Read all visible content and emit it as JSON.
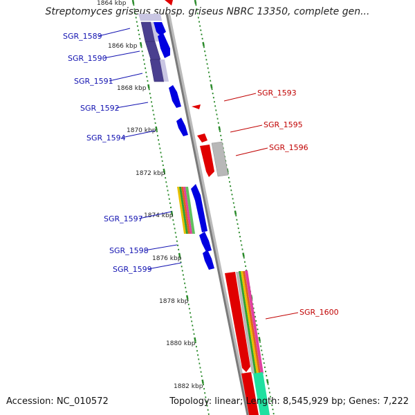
{
  "title": "Streptomyces griseus subsp. griseus NBRC 13350, complete gen...",
  "accession": "Accession: NC_010572",
  "summary": "Topology: linear; Length: 8,545,929 bp; Genes: 7,222",
  "colors": {
    "forward_gene": "#0000e0",
    "reverse_gene": "#e00000",
    "pseudo_gene": "#b0b0b0",
    "highlight_gene": "#4a3f8f",
    "scale_tick": "#2a8a2a",
    "axis": "#888888"
  },
  "scale_labels": [
    {
      "text": "1864 kbp",
      "kbp": 1864
    },
    {
      "text": "1866 kbp",
      "kbp": 1866
    },
    {
      "text": "1868 kbp",
      "kbp": 1868
    },
    {
      "text": "1870 kbp",
      "kbp": 1870
    },
    {
      "text": "1872 kbp",
      "kbp": 1872
    },
    {
      "text": "1874 kbp",
      "kbp": 1874
    },
    {
      "text": "1876 kbp",
      "kbp": 1876
    },
    {
      "text": "1878 kbp",
      "kbp": 1878
    },
    {
      "text": "1880 kbp",
      "kbp": 1880
    },
    {
      "text": "1882 kbp",
      "kbp": 1882
    }
  ],
  "left_genes": [
    {
      "label": "SGR_1589"
    },
    {
      "label": "SGR_1590"
    },
    {
      "label": "SGR_1591"
    },
    {
      "label": "SGR_1592"
    },
    {
      "label": "SGR_1594"
    },
    {
      "label": "SGR_1597"
    },
    {
      "label": "SGR_1598"
    },
    {
      "label": "SGR_1599"
    }
  ],
  "right_genes": [
    {
      "label": "SGR_1593"
    },
    {
      "label": "SGR_1595"
    },
    {
      "label": "SGR_1596"
    },
    {
      "label": "SGR_1600"
    }
  ]
}
